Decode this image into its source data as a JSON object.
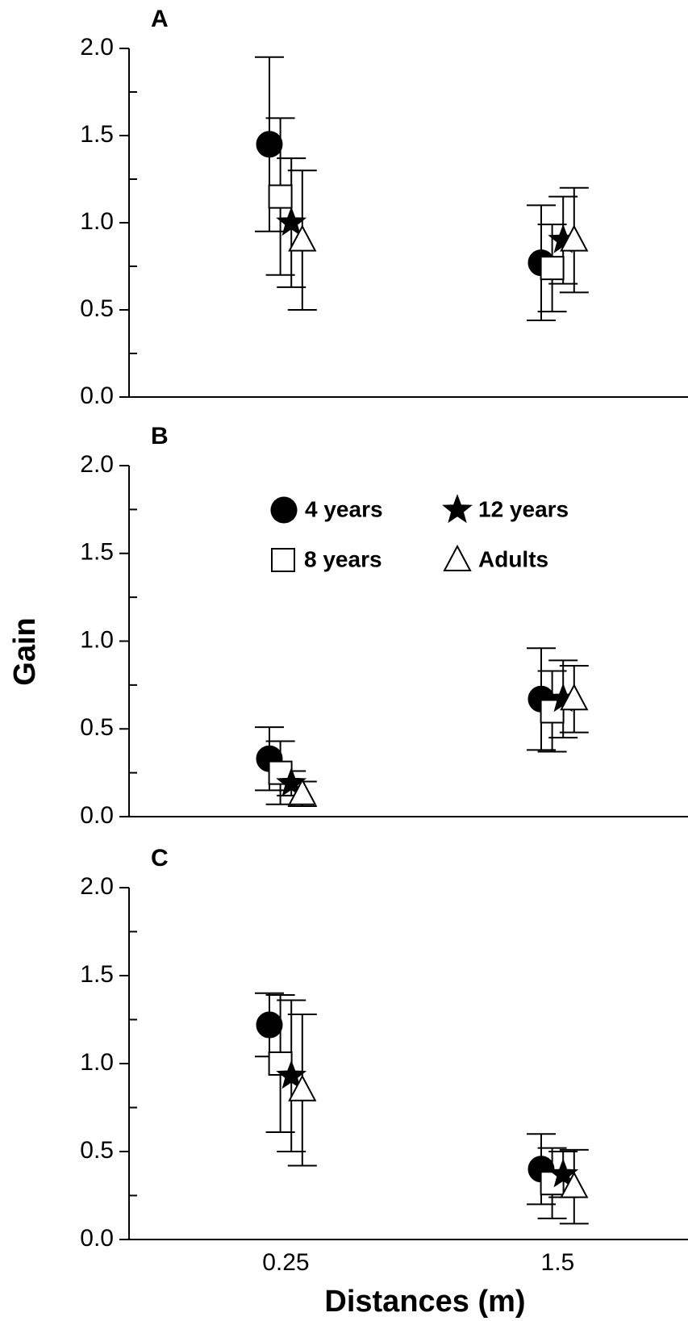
{
  "chart_data": [
    {
      "type": "scatter",
      "panel": "A",
      "ylim": [
        0,
        2
      ],
      "yticks": [
        {
          "value": 0,
          "label": "0.0"
        },
        0.5,
        {
          "value": 1,
          "label": "1.0"
        },
        1.5,
        {
          "value": 2,
          "label": "2.0"
        }
      ],
      "yminor_ticks": [
        0.25,
        0.75,
        1.25,
        1.75
      ],
      "series": [
        {
          "marker": "circle",
          "color": "#000000",
          "values": [
            1.45,
            0.77
          ],
          "errors": [
            0.5,
            0.33
          ]
        },
        {
          "marker": "square",
          "color": "#ffffff",
          "values": [
            1.15,
            0.74
          ],
          "errors": [
            0.45,
            0.25
          ]
        },
        {
          "marker": "star",
          "color": "#000000",
          "values": [
            1.0,
            0.9
          ],
          "errors": [
            0.37,
            0.25
          ]
        },
        {
          "marker": "triangle",
          "color": "#ffffff",
          "values": [
            0.9,
            0.9
          ],
          "errors": [
            0.4,
            0.3
          ]
        }
      ]
    },
    {
      "type": "scatter",
      "panel": "B",
      "y_label": "Gain",
      "ylim": [
        0,
        2
      ],
      "yticks": [
        {
          "value": 0,
          "label": "0.0"
        },
        0.5,
        {
          "value": 1,
          "label": "1.0"
        },
        1.5,
        {
          "value": 2,
          "label": "2.0"
        }
      ],
      "yminor_ticks": [
        0.25,
        0.75,
        1.25,
        1.75
      ],
      "series": [
        {
          "name": "4 years",
          "marker": "circle",
          "color": "#000000",
          "values": [
            0.33,
            0.67
          ],
          "errors": [
            0.18,
            0.29
          ]
        },
        {
          "name": "8 years",
          "marker": "square",
          "color": "#ffffff",
          "values": [
            0.25,
            0.6
          ],
          "errors": [
            0.18,
            0.23
          ]
        },
        {
          "name": "12 years",
          "marker": "star",
          "color": "#000000",
          "values": [
            0.19,
            0.67
          ],
          "errors": [
            0.07,
            0.22
          ]
        },
        {
          "name": "Adults",
          "marker": "triangle",
          "color": "#ffffff",
          "values": [
            0.13,
            0.67
          ],
          "errors": [
            0.07,
            0.19
          ]
        }
      ]
    },
    {
      "type": "scatter",
      "panel": "C",
      "x_label": "Distances (m)",
      "categories": [
        "0.25",
        "1.5"
      ],
      "ylim": [
        0,
        2
      ],
      "yticks": [
        {
          "value": 0,
          "label": "0.0"
        },
        0.5,
        {
          "value": 1,
          "label": "1.0"
        },
        1.5,
        {
          "value": 2,
          "label": "2.0"
        }
      ],
      "yminor_ticks": [
        0.25,
        0.75,
        1.25,
        1.75
      ],
      "series": [
        {
          "marker": "circle",
          "color": "#000000",
          "values": [
            1.22,
            0.4
          ],
          "errors": [
            0.18,
            0.2
          ]
        },
        {
          "marker": "square",
          "color": "#ffffff",
          "values": [
            1.0,
            0.32
          ],
          "errors": [
            0.39,
            0.2
          ]
        },
        {
          "marker": "star",
          "color": "#000000",
          "values": [
            0.93,
            0.37
          ],
          "errors": [
            0.43,
            0.13
          ]
        },
        {
          "marker": "triangle",
          "color": "#ffffff",
          "values": [
            0.85,
            0.3
          ],
          "errors": [
            0.43,
            0.21
          ]
        }
      ]
    }
  ]
}
